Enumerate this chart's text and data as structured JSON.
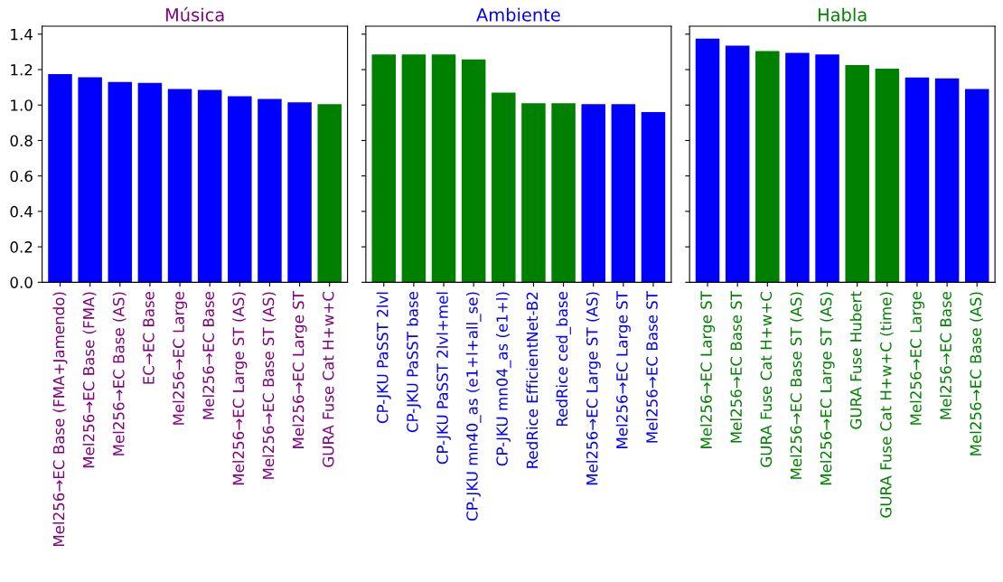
{
  "chart_data": [
    {
      "type": "bar",
      "title": "Música",
      "color": "#800080",
      "categories": [
        "Mel256→EC Base (FMA+Jamendo)",
        "Mel256→EC Base (FMA)",
        "Mel256→EC Base (AS)",
        "EC→EC Base",
        "Mel256→EC Large",
        "Mel256→EC Base",
        "Mel256→EC Large ST (AS)",
        "Mel256→EC Base ST (AS)",
        "Mel256→EC Large ST",
        "GURA Fuse Cat H+w+C"
      ],
      "values": [
        1.175,
        1.157,
        1.13,
        1.125,
        1.09,
        1.085,
        1.05,
        1.035,
        1.015,
        1.005
      ],
      "colors": [
        "#0000ff",
        "#0000ff",
        "#0000ff",
        "#0000ff",
        "#0000ff",
        "#0000ff",
        "#0000ff",
        "#0000ff",
        "#0000ff",
        "#008000"
      ],
      "ylim": [
        0,
        1.445
      ],
      "yticks": [
        {
          "value": 0,
          "label": "0.0"
        },
        0.2,
        0.4,
        0.6,
        0.8,
        {
          "value": 1,
          "label": "1.0"
        },
        1.2,
        1.4
      ],
      "grid": false
    },
    {
      "type": "bar",
      "title": "Ambiente",
      "color": "#0000ff",
      "categories": [
        "CP-JKU PaSST 2lvl",
        "CP-JKU PaSST base",
        "CP-JKU PaSST 2lvl+mel",
        "CP-JKU mn40_as (e1+l+all_se)",
        "CP-JKU mn04_as (e1+l)",
        "RedRice EfficientNet-B2",
        "RedRice ced_base",
        "Mel256→EC Large ST (AS)",
        "Mel256→EC Large ST",
        "Mel256→EC Base ST"
      ],
      "values": [
        1.285,
        1.285,
        1.285,
        1.257,
        1.07,
        1.01,
        1.01,
        1.005,
        1.005,
        0.96
      ],
      "colors": [
        "#008000",
        "#008000",
        "#008000",
        "#008000",
        "#008000",
        "#008000",
        "#008000",
        "#0000ff",
        "#0000ff",
        "#0000ff"
      ],
      "ylim": [
        0,
        1.445
      ],
      "yticks": [
        {
          "value": 0.0,
          "label": null
        },
        {
          "value": 0.2,
          "label": null
        },
        {
          "value": 0.4,
          "label": null
        },
        {
          "value": 0.6,
          "label": null
        },
        {
          "value": 0.8,
          "label": null
        },
        {
          "value": 1.0,
          "label": null
        },
        {
          "value": 1.2,
          "label": null
        },
        {
          "value": 1.4,
          "label": null
        }
      ],
      "tick_labels": "x",
      "grid": false
    },
    {
      "type": "bar",
      "title": "Habla",
      "color": "#008000",
      "categories": [
        "Mel256→EC Large ST",
        "Mel256→EC Base ST",
        "GURA Fuse Cat H+w+C",
        "Mel256→EC Base ST (AS)",
        "Mel256→EC Large ST (AS)",
        "GURA Fuse Hubert",
        "GURA Fuse Cat H+w+C (time)",
        "Mel256→EC Large",
        "Mel256→EC Base",
        "Mel256→EC Base (AS)"
      ],
      "values": [
        1.375,
        1.335,
        1.305,
        1.295,
        1.285,
        1.225,
        1.205,
        1.155,
        1.15,
        1.09
      ],
      "colors": [
        "#0000ff",
        "#0000ff",
        "#008000",
        "#0000ff",
        "#0000ff",
        "#008000",
        "#008000",
        "#0000ff",
        "#0000ff",
        "#0000ff"
      ],
      "ylim": [
        0,
        1.445
      ],
      "yticks": [
        {
          "value": 0.0,
          "label": null
        },
        {
          "value": 0.2,
          "label": null
        },
        {
          "value": 0.4,
          "label": null
        },
        {
          "value": 0.6,
          "label": null
        },
        {
          "value": 0.8,
          "label": null
        },
        {
          "value": 1.0,
          "label": null
        },
        {
          "value": 1.2,
          "label": null
        },
        {
          "value": 1.4,
          "label": null
        }
      ],
      "tick_labels": "x",
      "grid": false
    }
  ]
}
